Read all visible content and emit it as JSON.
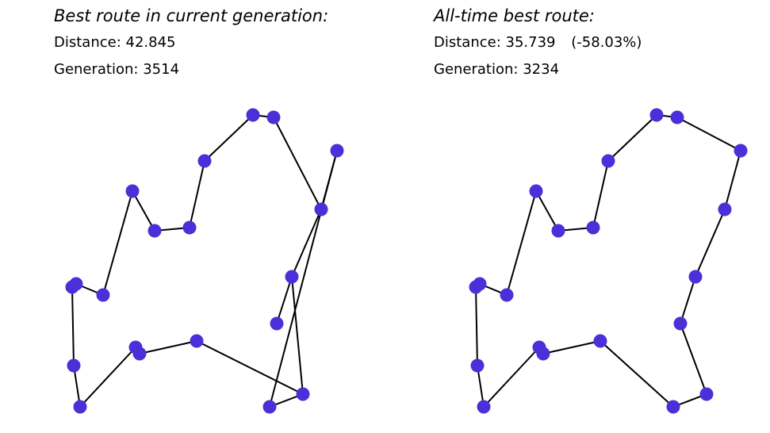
{
  "current": {
    "title": "Best route in current generation:",
    "distance_label": "Distance:",
    "distance_value": "42.845",
    "generation_label": "Generation:",
    "generation_value": "3514"
  },
  "alltime": {
    "title": "All-time best route:",
    "distance_label": "Distance:",
    "distance_value": "35.739",
    "distance_delta": "(-58.03%)",
    "generation_label": "Generation:",
    "generation_value": "3234"
  },
  "style": {
    "node_color": "#4b2fd8",
    "edge_color": "#000000"
  }
}
